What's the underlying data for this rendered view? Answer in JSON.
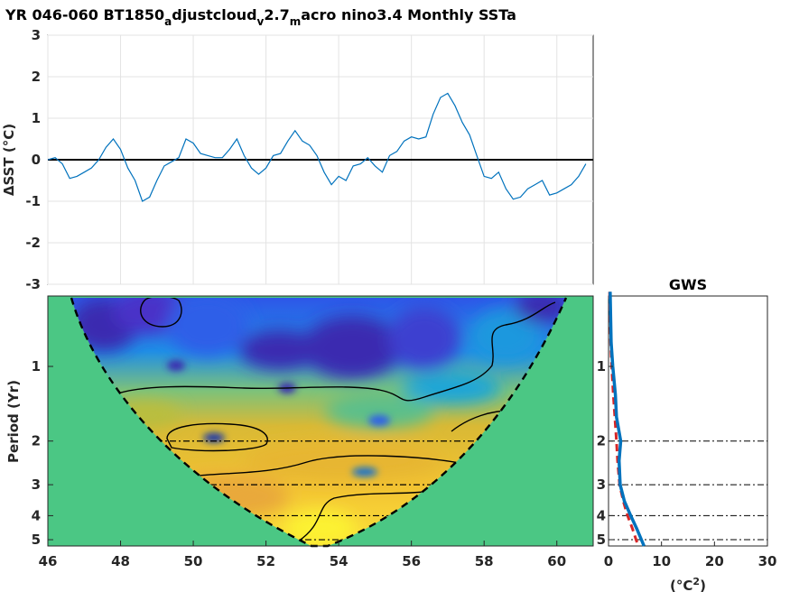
{
  "title": {
    "p1": "YR 046-060 BT1850",
    "s1": "a",
    "p2": "djustcloud",
    "s2": "v",
    "p3": "2.7",
    "s3": "m",
    "p4": "acro nino3.4 Monthly SSTa"
  },
  "chart_data": [
    {
      "type": "line",
      "name": "sst-anomaly",
      "ylabel": "ΔSST (°C)",
      "xlim": [
        46,
        61
      ],
      "ylim": [
        -3,
        3
      ],
      "yticks": [
        "-3",
        "-2",
        "-1",
        "0",
        "1",
        "2",
        "3"
      ],
      "grid": true,
      "zero_line": true,
      "line_color": "#0072BD",
      "x": [
        46.0,
        46.2,
        46.4,
        46.6,
        46.8,
        47.0,
        47.2,
        47.4,
        47.6,
        47.8,
        48.0,
        48.2,
        48.4,
        48.6,
        48.8,
        49.0,
        49.2,
        49.4,
        49.6,
        49.8,
        50.0,
        50.2,
        50.4,
        50.6,
        50.8,
        51.0,
        51.2,
        51.4,
        51.6,
        51.8,
        52.0,
        52.2,
        52.4,
        52.6,
        52.8,
        53.0,
        53.2,
        53.4,
        53.6,
        53.8,
        54.0,
        54.2,
        54.4,
        54.6,
        54.8,
        55.0,
        55.2,
        55.4,
        55.6,
        55.8,
        56.0,
        56.2,
        56.4,
        56.6,
        56.8,
        57.0,
        57.2,
        57.4,
        57.6,
        57.8,
        58.0,
        58.2,
        58.4,
        58.6,
        58.8,
        59.0,
        59.2,
        59.4,
        59.6,
        59.8,
        60.0,
        60.2,
        60.4,
        60.6,
        60.8
      ],
      "y": [
        0.0,
        0.05,
        -0.1,
        -0.45,
        -0.4,
        -0.3,
        -0.2,
        0.0,
        0.3,
        0.5,
        0.25,
        -0.2,
        -0.5,
        -1.0,
        -0.9,
        -0.5,
        -0.15,
        -0.05,
        0.05,
        0.5,
        0.4,
        0.15,
        0.1,
        0.05,
        0.05,
        0.25,
        0.5,
        0.1,
        -0.2,
        -0.35,
        -0.2,
        0.1,
        0.15,
        0.45,
        0.7,
        0.45,
        0.35,
        0.1,
        -0.3,
        -0.6,
        -0.4,
        -0.5,
        -0.15,
        -0.1,
        0.05,
        -0.15,
        -0.3,
        0.1,
        0.2,
        0.45,
        0.55,
        0.5,
        0.55,
        1.1,
        1.5,
        1.6,
        1.3,
        0.9,
        0.6,
        0.1,
        -0.4,
        -0.45,
        -0.3,
        -0.7,
        -0.95,
        -0.9,
        -0.7,
        -0.6,
        -0.5,
        -0.85,
        -0.8,
        -0.7,
        -0.6,
        -0.4,
        -0.1
      ]
    },
    {
      "type": "heatmap",
      "name": "wavelet-power-spectrum",
      "ylabel": "Period (Yr)",
      "xlim": [
        46,
        61
      ],
      "xticks": [
        "46",
        "48",
        "50",
        "52",
        "54",
        "56",
        "58",
        "60"
      ],
      "y_scale": "log",
      "yticks": [
        "1",
        "2",
        "3",
        "4",
        "5"
      ],
      "reference_periods": [
        2,
        3,
        4,
        5
      ],
      "colormap": "parula"
    },
    {
      "type": "line",
      "name": "global-wavelet-spectrum",
      "title": "GWS",
      "xlabel": "(°C²)",
      "xlabel_base": "(",
      "xlabel_unit": "°C",
      "xlabel_sup": "2",
      "xlabel_end": ")",
      "xlim": [
        0,
        30
      ],
      "xticks": [
        "0",
        "10",
        "20",
        "30"
      ],
      "yticks": [
        "1",
        "2",
        "3",
        "4",
        "5"
      ],
      "series": [
        {
          "name": "",
          "color": "#0072BD",
          "style": "solid",
          "period": [
            0.5,
            0.8,
            1.0,
            1.3,
            1.6,
            2.0,
            2.4,
            3.0,
            3.5,
            4.0,
            4.5,
            5.0,
            5.3
          ],
          "power": [
            0.3,
            0.5,
            0.8,
            1.3,
            1.5,
            2.3,
            2.0,
            2.2,
            3.0,
            4.2,
            5.3,
            6.2,
            6.7
          ]
        },
        {
          "name": "",
          "color": "#D62728",
          "style": "dashed",
          "period": [
            0.5,
            0.8,
            1.0,
            1.3,
            1.6,
            2.0,
            2.4,
            3.0,
            3.5,
            4.0,
            4.5,
            5.0,
            5.3
          ],
          "power": [
            0.2,
            0.4,
            0.6,
            0.9,
            1.2,
            1.5,
            1.7,
            2.1,
            2.8,
            3.6,
            4.5,
            5.2,
            5.6
          ]
        }
      ]
    }
  ]
}
